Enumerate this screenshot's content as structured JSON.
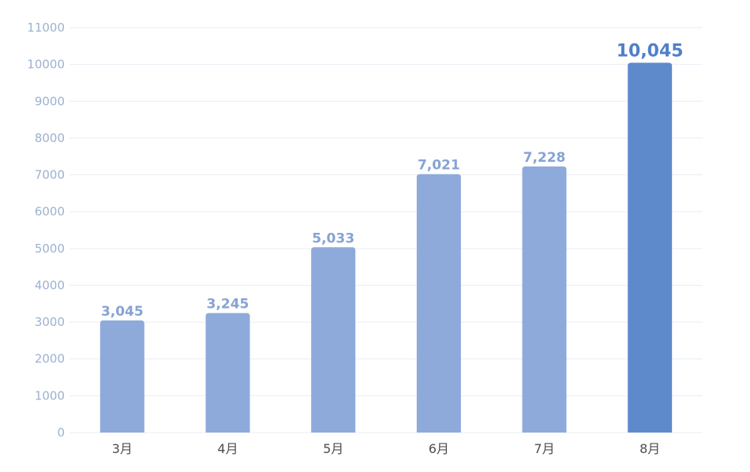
{
  "chart_data": {
    "type": "bar",
    "title": "",
    "xlabel": "",
    "ylabel": "",
    "ylim": [
      0,
      11000
    ],
    "yticks": [
      0,
      1000,
      2000,
      3000,
      4000,
      5000,
      6000,
      7000,
      8000,
      9000,
      10000,
      11000
    ],
    "grid": true,
    "legend": "none",
    "categories": [
      "3月",
      "4月",
      "5月",
      "6月",
      "7月",
      "8月"
    ],
    "values": [
      3045,
      3245,
      5033,
      7021,
      7228,
      10045
    ],
    "value_labels": [
      "3,045",
      "3,245",
      "5,033",
      "7,021",
      "7,228",
      "10,045"
    ],
    "highlight_index": 5,
    "colors": {
      "bar": "#8eaadb",
      "highlight_bar": "#5e8acb",
      "value_label": "#86a3d4",
      "highlight_value_label": "#4f80c8",
      "grid": "#e9edf3",
      "y_tick": "#9db2cf",
      "x_tick": "#4d4d4d"
    }
  }
}
